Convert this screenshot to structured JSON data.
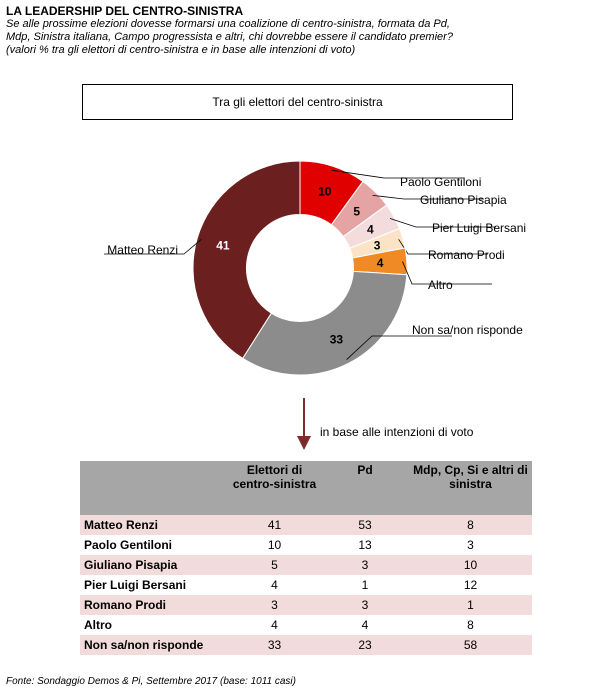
{
  "header": {
    "title": "LA LEADERSHIP DEL CENTRO-SINISTRA",
    "subtitle_lines": [
      "Se alle prossime elezioni dovesse formarsi una coalizione di centro-sinistra, formata da Pd,",
      "Mdp, Sinistra italiana, Campo progressista e altri, chi dovrebbe essere il candidato premier?",
      "(valori % tra gli elettori di centro-sinistra e in base alle intenzioni di voto)"
    ]
  },
  "chart_data": {
    "type": "pie",
    "title": "Tra gli elettori del centro-sinistra",
    "categories": [
      "Paolo Gentiloni",
      "Giuliano Pisapia",
      "Pier Luigi Bersani",
      "Romano Prodi",
      "Altro",
      "Non sa/non risponde",
      "Matteo Renzi"
    ],
    "values": [
      10,
      5,
      4,
      3,
      4,
      33,
      41
    ],
    "colors": [
      "#e00000",
      "#e6a3a3",
      "#f5dcdc",
      "#fbe4c6",
      "#f08a24",
      "#8c8c8c",
      "#6b1f1f"
    ],
    "label_colors": [
      "#000000",
      "#000000",
      "#000000",
      "#000000",
      "#000000",
      "#000000",
      "#ffffff"
    ],
    "hole": 0.5
  },
  "arrow": {
    "label": "in base alle intenzioni di voto",
    "color": "#7b2c2c"
  },
  "table": {
    "headers": [
      "",
      "Elettori di centro-sinistra",
      "Pd",
      "Mdp, Cp, Si e altri di sinistra"
    ],
    "rows": [
      {
        "name": "Matteo Renzi",
        "values": [
          "41",
          "53",
          "8"
        ]
      },
      {
        "name": "Paolo Gentiloni",
        "values": [
          "10",
          "13",
          "3"
        ]
      },
      {
        "name": "Giuliano Pisapia",
        "values": [
          "5",
          "3",
          "10"
        ]
      },
      {
        "name": "Pier Luigi Bersani",
        "values": [
          "4",
          "1",
          "12"
        ]
      },
      {
        "name": "Romano Prodi",
        "values": [
          "3",
          "3",
          "1"
        ]
      },
      {
        "name": "Altro",
        "values": [
          "4",
          "4",
          "8"
        ]
      },
      {
        "name": "Non sa/non risponde",
        "values": [
          "33",
          "23",
          "58"
        ]
      }
    ]
  },
  "footer": {
    "source": "Fonte: Sondaggio Demos & Pi, Settembre 2017 (base: 1011 casi)"
  }
}
